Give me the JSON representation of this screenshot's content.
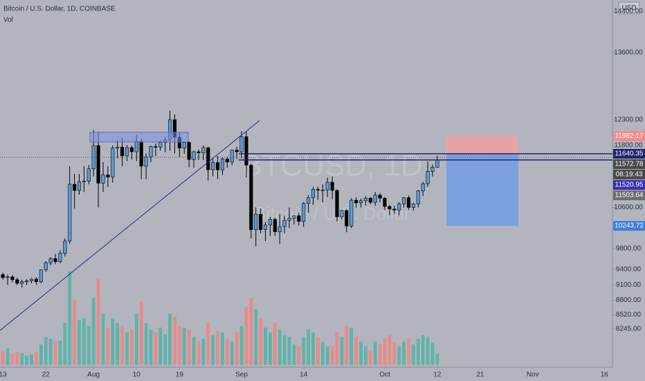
{
  "chart_data": {
    "type": "candlestick",
    "title": "Bitcoin / U.S. Dollar, 1D, COINBASE",
    "subtitle": "Vol",
    "currency": "USD",
    "watermark": [
      "BTCUSD, 1D",
      "Bitcoin / U.S. Dollar"
    ],
    "xlim": [
      -0.6,
      127.7
    ],
    "xticks": [
      {
        "value": 0,
        "label": "13"
      },
      {
        "value": 9,
        "label": "22"
      },
      {
        "value": 19,
        "label": "Aug"
      },
      {
        "value": 28,
        "label": "10"
      },
      {
        "value": 37,
        "label": "19"
      },
      {
        "value": 50,
        "label": "Sep"
      },
      {
        "value": 63,
        "label": "14"
      },
      {
        "value": 80,
        "label": "Oct"
      },
      {
        "value": 91,
        "label": "12"
      },
      {
        "value": 100,
        "label": "21"
      },
      {
        "value": 111,
        "label": "Nov"
      },
      {
        "value": 126,
        "label": "16"
      }
    ],
    "ylim": [
      7506,
      14620
    ],
    "yticks": [
      {
        "value": 14400,
        "label": "14400.00"
      },
      {
        "value": 13600,
        "label": "13600.00"
      },
      {
        "value": 12300,
        "label": "12300.00"
      },
      {
        "value": 11800,
        "label": "11800.00"
      },
      {
        "value": 10600,
        "label": "10600.00"
      },
      {
        "value": 9800,
        "label": "9800.00"
      },
      {
        "value": 9400,
        "label": "9400.00"
      },
      {
        "value": 9100,
        "label": "9100.00"
      },
      {
        "value": 8800,
        "label": "8800.00"
      },
      {
        "value": 8520,
        "label": "8520.00"
      },
      {
        "value": 8245,
        "label": "8245.00"
      }
    ],
    "open": [
      9300,
      9240,
      9255,
      9200,
      9130,
      9160,
      9180,
      9210,
      9160,
      9390,
      9530,
      9610,
      9550,
      9710,
      9950,
      11050,
      10930,
      11100,
      11110,
      11350,
      11800,
      11070,
      11230,
      11190,
      11750,
      11770,
      11600,
      11760,
      11680,
      11880,
      11400,
      11580,
      11780,
      11770,
      11860,
      11910,
      12300,
      11960,
      11750,
      11860,
      11530,
      11680,
      11660,
      11760,
      11330,
      11470,
      11330,
      11540,
      11480,
      11710,
      11680,
      11970,
      11420,
      10170,
      10470,
      10170,
      10260,
      10370,
      10130,
      10230,
      10350,
      10390,
      10440,
      10330,
      10680,
      10790,
      10950,
      10940,
      10940,
      11090,
      10930,
      10420,
      10540,
      10240,
      10740,
      10690,
      10730,
      10780,
      10700,
      10840,
      10780,
      10620,
      10570,
      10550,
      10670,
      10790,
      10600,
      10670,
      10920,
      11060,
      11300,
      11380
    ],
    "high": [
      9340,
      9300,
      9290,
      9240,
      9200,
      9210,
      9230,
      9250,
      9400,
      9560,
      9640,
      9700,
      9770,
      10000,
      11400,
      11250,
      11250,
      11400,
      11420,
      12100,
      12050,
      11480,
      11400,
      11800,
      11900,
      11950,
      11810,
      11800,
      12000,
      11940,
      11650,
      11800,
      11840,
      11900,
      11970,
      12480,
      12400,
      12050,
      11880,
      11880,
      11700,
      11720,
      11800,
      11770,
      11550,
      11600,
      11580,
      11580,
      11720,
      11780,
      12080,
      12080,
      11450,
      10600,
      10580,
      10320,
      10420,
      10400,
      10470,
      10440,
      10600,
      10440,
      10500,
      10710,
      10840,
      11000,
      11000,
      11050,
      11180,
      11200,
      10950,
      10550,
      10560,
      10780,
      10800,
      10770,
      10820,
      10800,
      10900,
      10880,
      10800,
      10650,
      10630,
      10700,
      10800,
      10830,
      10690,
      10940,
      11100,
      11490,
      11430,
      11600
    ],
    "low": [
      9200,
      9100,
      9150,
      9100,
      9050,
      9100,
      9130,
      9100,
      9130,
      9350,
      9480,
      9500,
      9520,
      9650,
      9900,
      10580,
      10850,
      10900,
      11050,
      11200,
      10600,
      10900,
      11000,
      11080,
      11550,
      11400,
      11500,
      11530,
      11500,
      11150,
      11150,
      11480,
      11600,
      11700,
      11670,
      11700,
      11650,
      11580,
      11640,
      11380,
      11370,
      11520,
      11520,
      11120,
      11200,
      11150,
      11230,
      11370,
      11420,
      11540,
      11550,
      11180,
      10000,
      9850,
      10100,
      9950,
      10050,
      10050,
      9890,
      10100,
      10200,
      10270,
      10250,
      10220,
      10500,
      10650,
      10750,
      10700,
      10800,
      10760,
      10330,
      10370,
      10120,
      10200,
      10600,
      10600,
      10640,
      10660,
      10630,
      10700,
      10550,
      10450,
      10480,
      10450,
      10600,
      10550,
      10540,
      10600,
      10820,
      11000,
      11200,
      11370
    ],
    "close": [
      9240,
      9255,
      9200,
      9130,
      9160,
      9180,
      9210,
      9160,
      9390,
      9530,
      9610,
      9550,
      9710,
      9950,
      11050,
      10930,
      11100,
      11110,
      11350,
      11800,
      11070,
      11230,
      11190,
      11750,
      11770,
      11600,
      11760,
      11680,
      11880,
      11400,
      11580,
      11780,
      11770,
      11860,
      11910,
      12300,
      11960,
      11750,
      11860,
      11530,
      11680,
      11660,
      11760,
      11330,
      11470,
      11330,
      11540,
      11480,
      11710,
      11680,
      11970,
      11420,
      10170,
      10470,
      10170,
      10260,
      10370,
      10130,
      10230,
      10350,
      10390,
      10440,
      10330,
      10680,
      10790,
      10950,
      10940,
      10940,
      11090,
      10930,
      10420,
      10540,
      10240,
      10740,
      10690,
      10730,
      10780,
      10700,
      10840,
      10780,
      10620,
      10570,
      10550,
      10670,
      10790,
      10600,
      10670,
      10920,
      11060,
      11300,
      11380,
      11520
    ],
    "volume": [
      15,
      18,
      12,
      14,
      13,
      10,
      11,
      14,
      22,
      30,
      28,
      25,
      26,
      45,
      100,
      70,
      48,
      50,
      42,
      72,
      92,
      55,
      40,
      50,
      45,
      42,
      35,
      38,
      55,
      68,
      45,
      38,
      35,
      40,
      33,
      55,
      52,
      42,
      40,
      38,
      30,
      25,
      28,
      45,
      32,
      36,
      35,
      28,
      25,
      35,
      42,
      62,
      72,
      60,
      50,
      40,
      35,
      45,
      38,
      32,
      30,
      22,
      20,
      30,
      38,
      35,
      30,
      25,
      20,
      20,
      35,
      30,
      42,
      40,
      30,
      25,
      20,
      15,
      25,
      22,
      28,
      32,
      24,
      20,
      25,
      28,
      22,
      28,
      32,
      30,
      24,
      12
    ],
    "up_color": "#5b9bd5",
    "down_color": "#000000",
    "volume_up_color": "#5fb3ab",
    "volume_down_color": "#e98a8a",
    "price_levels": [
      {
        "value": 11982.17,
        "color": "#f28b8b"
      },
      {
        "value": 11640.35,
        "color": "#23236e"
      },
      {
        "value": 11572.78,
        "color": "#4a4a4a"
      },
      {
        "value": 11520.95,
        "color": "#3b2fb5"
      },
      {
        "value": 11503.64,
        "color": "#6e6e6e"
      },
      {
        "value": 10243.72,
        "color": "#3d7fd9"
      }
    ],
    "countdown": "08:19:43"
  }
}
